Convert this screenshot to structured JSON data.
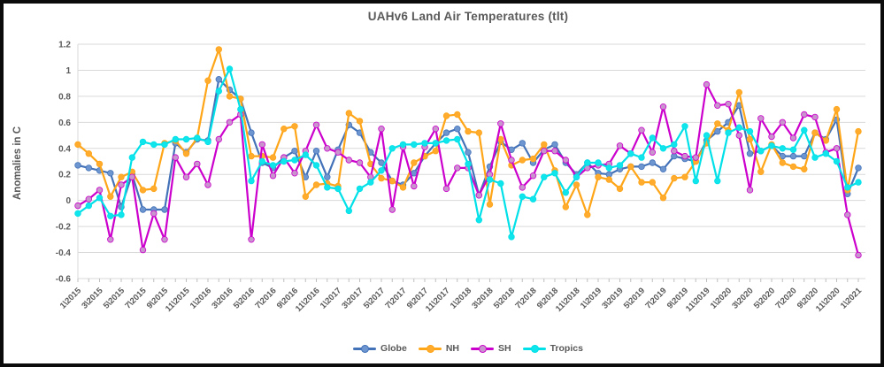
{
  "chart_data": {
    "type": "line",
    "title": "UAHv6 Land Air Temperatures (tlt)",
    "ylabel": "Anomalies in C",
    "ylim": [
      -0.6,
      1.2
    ],
    "y_tick_step": 0.2,
    "y_tick_labels": [
      "1.2",
      "1",
      "0.8",
      "0.6",
      "0.4",
      "0.2",
      "0",
      "-0.2",
      "-0.4",
      "-0.6"
    ],
    "x_tick_labels": [
      "1\\2015",
      "3\\2015",
      "5\\2015",
      "7\\2015",
      "9\\2015",
      "11\\2015",
      "1\\2016",
      "3\\2016",
      "5\\2016",
      "7\\2016",
      "9\\2016",
      "11\\2016",
      "1\\2017",
      "3\\2017",
      "5\\2017",
      "7\\2017",
      "9\\2017",
      "11\\2017",
      "1\\2018",
      "3\\2018",
      "5\\2018",
      "7\\2018",
      "9\\2018",
      "11\\2018",
      "1\\2019",
      "3\\2019",
      "5\\2019",
      "7\\2019",
      "9\\2019",
      "11\\2019",
      "1\\2020",
      "3\\2020",
      "5\\2020",
      "7\\2020",
      "9\\2020",
      "11\\2020",
      "1\\2021"
    ],
    "x_tick_every": 2,
    "n_points": 73,
    "x_range_note": "monthly, Jan 2015 through Jan 2021",
    "grid": "horizontal",
    "legend_position": "bottom-center",
    "colors": {
      "grid": "#D9D9D9",
      "tick": "#BFBFBF",
      "text": "#595959",
      "title": "#595959",
      "background": "#FFFFFF",
      "border": "#0B0B0B"
    },
    "series": [
      {
        "name": "Globe",
        "color": "#4472B8",
        "marker_color": "#6D96D0",
        "values": [
          0.27,
          0.25,
          0.23,
          0.21,
          -0.05,
          0.2,
          -0.07,
          -0.07,
          -0.07,
          0.44,
          0.37,
          0.47,
          0.46,
          0.93,
          0.85,
          0.78,
          0.52,
          0.29,
          0.25,
          0.33,
          0.38,
          0.18,
          0.38,
          0.18,
          0.39,
          0.58,
          0.52,
          0.37,
          0.29,
          0.15,
          0.12,
          0.21,
          0.34,
          0.44,
          0.52,
          0.55,
          0.37,
          0.04,
          0.26,
          0.45,
          0.39,
          0.44,
          0.29,
          0.39,
          0.43,
          0.29,
          0.2,
          0.29,
          0.21,
          0.2,
          0.24,
          0.26,
          0.26,
          0.29,
          0.24,
          0.34,
          0.32,
          0.3,
          0.46,
          0.53,
          0.6,
          0.73,
          0.36,
          0.38,
          0.42,
          0.34,
          0.34,
          0.34,
          0.52,
          0.47,
          0.62,
          0.05,
          0.25
        ]
      },
      {
        "name": "NH",
        "color": "#FFA518",
        "marker_color": "#FFAB2E",
        "values": [
          0.43,
          0.36,
          0.28,
          0.03,
          0.18,
          0.22,
          0.08,
          0.09,
          0.44,
          0.46,
          0.36,
          0.48,
          0.92,
          1.16,
          0.8,
          0.78,
          0.34,
          0.34,
          0.33,
          0.55,
          0.57,
          0.03,
          0.12,
          0.13,
          0.11,
          0.67,
          0.61,
          0.28,
          0.17,
          0.15,
          0.1,
          0.29,
          0.34,
          0.38,
          0.65,
          0.66,
          0.53,
          0.52,
          -0.03,
          0.47,
          0.27,
          0.31,
          0.32,
          0.43,
          0.23,
          -0.05,
          0.12,
          -0.11,
          0.18,
          0.16,
          0.09,
          0.26,
          0.14,
          0.14,
          0.02,
          0.17,
          0.18,
          0.3,
          0.44,
          0.59,
          0.54,
          0.83,
          0.47,
          0.22,
          0.43,
          0.29,
          0.26,
          0.24,
          0.52,
          0.46,
          0.7,
          0.08,
          0.53
        ]
      },
      {
        "name": "SH",
        "color": "#CC00CC",
        "marker_color": "#C993CE",
        "values": [
          -0.04,
          0.01,
          0.08,
          -0.3,
          0.12,
          0.18,
          -0.38,
          -0.1,
          -0.3,
          0.33,
          0.18,
          0.28,
          0.12,
          0.47,
          0.6,
          0.66,
          -0.3,
          0.43,
          0.19,
          0.33,
          0.21,
          0.38,
          0.58,
          0.4,
          0.37,
          0.31,
          0.29,
          0.18,
          0.55,
          -0.07,
          0.41,
          0.11,
          0.41,
          0.55,
          0.09,
          0.25,
          0.25,
          0.04,
          0.2,
          0.59,
          0.31,
          0.1,
          0.19,
          0.38,
          0.38,
          0.31,
          0.18,
          0.25,
          0.27,
          0.28,
          0.42,
          0.36,
          0.54,
          0.37,
          0.72,
          0.38,
          0.34,
          0.33,
          0.89,
          0.73,
          0.74,
          0.5,
          0.08,
          0.63,
          0.49,
          0.6,
          0.48,
          0.66,
          0.64,
          0.37,
          0.4,
          -0.11,
          -0.42
        ]
      },
      {
        "name": "Tropics",
        "color": "#00E0E8",
        "marker_color": "#10E5EC",
        "values": [
          -0.1,
          -0.04,
          0.02,
          -0.12,
          -0.11,
          0.33,
          0.45,
          0.43,
          0.43,
          0.47,
          0.47,
          0.48,
          0.45,
          0.84,
          1.01,
          0.7,
          0.15,
          0.3,
          0.27,
          0.3,
          0.31,
          0.35,
          0.27,
          0.1,
          0.09,
          -0.08,
          0.09,
          0.14,
          0.23,
          0.4,
          0.43,
          0.43,
          0.44,
          0.44,
          0.46,
          0.47,
          0.28,
          -0.15,
          0.16,
          0.13,
          -0.28,
          0.03,
          0.01,
          0.18,
          0.21,
          0.06,
          0.18,
          0.29,
          0.29,
          0.25,
          0.27,
          0.36,
          0.33,
          0.48,
          0.4,
          0.43,
          0.57,
          0.15,
          0.5,
          0.15,
          0.52,
          0.56,
          0.53,
          0.38,
          0.42,
          0.4,
          0.39,
          0.54,
          0.33,
          0.36,
          0.3,
          0.1,
          0.14
        ]
      }
    ]
  }
}
